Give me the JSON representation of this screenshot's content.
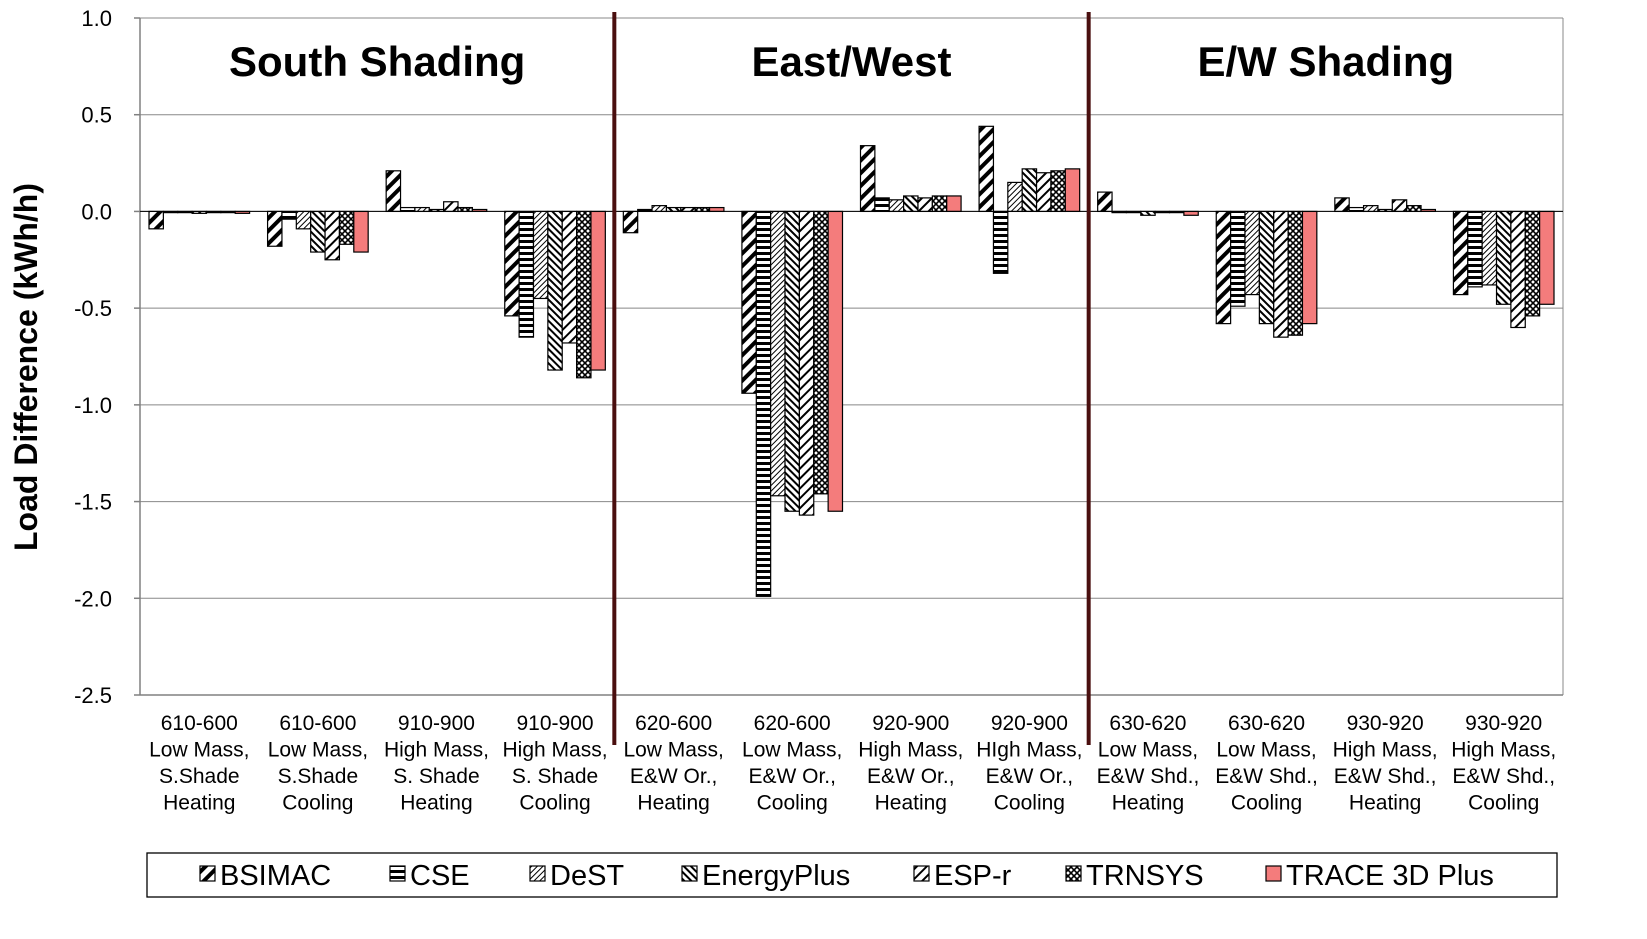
{
  "chart_data": {
    "type": "bar",
    "ylabel": "Load Difference (kWh/h)",
    "ylim": [
      -2.5,
      1.0
    ],
    "yticks": [
      "1.0",
      "0.5",
      "0.0",
      "-0.5",
      "-1.0",
      "-1.5",
      "-2.0",
      "-2.5"
    ],
    "ytick_values": [
      1.0,
      0.5,
      0.0,
      -0.5,
      -1.0,
      -1.5,
      -2.0,
      -2.5
    ],
    "grid": true,
    "legend_position": "bottom",
    "sections": [
      "South Shading",
      "East/West",
      "E/W Shading"
    ],
    "categories": [
      [
        "610-600",
        "Low Mass,",
        "S.Shade",
        "Heating"
      ],
      [
        "610-600",
        "Low Mass,",
        "S.Shade",
        "Cooling"
      ],
      [
        "910-900",
        "High Mass,",
        "S. Shade",
        "Heating"
      ],
      [
        "910-900",
        "High Mass,",
        "S. Shade",
        "Cooling"
      ],
      [
        "620-600",
        "Low Mass,",
        "E&W Or.,",
        "Heating"
      ],
      [
        "620-600",
        "Low Mass,",
        "E&W Or.,",
        "Cooling"
      ],
      [
        "920-900",
        "High Mass,",
        "E&W Or.,",
        "Heating"
      ],
      [
        "920-900",
        "HIgh Mass,",
        "E&W Or.,",
        "Cooling"
      ],
      [
        "630-620",
        "Low Mass,",
        "E&W Shd.,",
        "Heating"
      ],
      [
        "630-620",
        "Low Mass,",
        "E&W Shd.,",
        "Cooling"
      ],
      [
        "930-920",
        "High Mass,",
        "E&W Shd.,",
        "Heating"
      ],
      [
        "930-920",
        "High Mass,",
        "E&W Shd.,",
        "Cooling"
      ]
    ],
    "series": [
      {
        "name": "BSIMAC",
        "pattern": "diag-thick",
        "values": [
          -0.09,
          -0.18,
          0.21,
          -0.54,
          -0.11,
          -0.94,
          0.34,
          0.44,
          0.1,
          -0.58,
          0.07,
          -0.43
        ]
      },
      {
        "name": "CSE",
        "pattern": "horizontal",
        "values": [
          0.0,
          -0.04,
          0.02,
          -0.65,
          0.01,
          -1.99,
          0.07,
          -0.32,
          0.0,
          -0.49,
          0.02,
          -0.39
        ]
      },
      {
        "name": "DeST",
        "pattern": "diag-fine",
        "values": [
          0.0,
          -0.09,
          0.02,
          -0.45,
          0.03,
          -1.47,
          0.06,
          0.15,
          0.0,
          -0.43,
          0.03,
          -0.38
        ]
      },
      {
        "name": "EnergyPlus",
        "pattern": "diag-dense",
        "values": [
          -0.01,
          -0.21,
          0.01,
          -0.82,
          0.02,
          -1.55,
          0.08,
          0.22,
          -0.02,
          -0.58,
          0.01,
          -0.48
        ]
      },
      {
        "name": "ESP-r",
        "pattern": "diag-wide",
        "values": [
          0.0,
          -0.25,
          0.05,
          -0.68,
          0.02,
          -1.57,
          0.07,
          0.2,
          0.0,
          -0.65,
          0.06,
          -0.6
        ]
      },
      {
        "name": "TRNSYS",
        "pattern": "cross",
        "values": [
          0.0,
          -0.17,
          0.02,
          -0.86,
          0.02,
          -1.46,
          0.08,
          0.21,
          0.0,
          -0.64,
          0.03,
          -0.54
        ]
      },
      {
        "name": "TRACE 3D Plus",
        "pattern": "solid",
        "color": "#f47c7c",
        "values": [
          -0.01,
          -0.21,
          0.01,
          -0.82,
          0.02,
          -1.55,
          0.08,
          0.22,
          -0.02,
          -0.58,
          0.01,
          -0.48
        ]
      }
    ],
    "colors": {
      "bar_stroke": "#000000",
      "grid": "#888888",
      "axis": "#808080",
      "divider": "#4a0f0f",
      "trace": "#f47c7c"
    }
  }
}
